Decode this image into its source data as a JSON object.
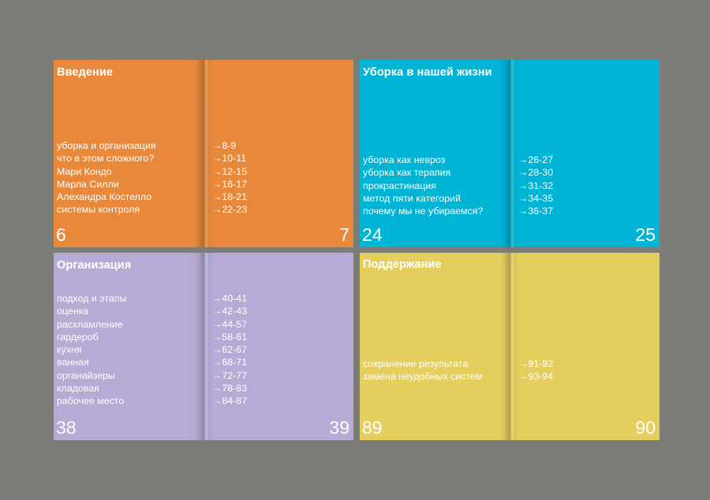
{
  "spreads": [
    {
      "title": "Введение",
      "color": "#e8883b",
      "items": [
        "уборка и организация",
        "что в этом сложного?",
        "Мари Кондо",
        "Марла Силли",
        "Алехандра Костелло",
        "системы контроля"
      ],
      "pages": [
        "→8-9",
        "→10-11",
        "→12-15",
        "→16-17",
        "→18-21",
        "→22-23"
      ],
      "left_page": "6",
      "right_page": "7"
    },
    {
      "title": "Уборка в нашей жизни",
      "color": "#00b4d6",
      "items": [
        "уборка как невроз",
        "уборка как терапия",
        "прокрастинация",
        "метод пяти категорий",
        "почему мы не убираемся?"
      ],
      "pages": [
        "→26-27",
        "→28-30",
        "→31-32",
        "→34-35",
        "→36-37"
      ],
      "left_page": "24",
      "right_page": "25"
    },
    {
      "title": "Организация",
      "color": "#b5abd5",
      "items": [
        "подход и этапы",
        "оценка",
        "расхламление",
        "гардероб",
        "кухня",
        "ванная",
        "органайзеры",
        "кладовая",
        "рабочее место"
      ],
      "pages": [
        "→40-41",
        "→42-43",
        "→44-57",
        "→58-61",
        "→62-67",
        "→68-71",
        "→72-77",
        "→78-83",
        "→84-87"
      ],
      "left_page": "38",
      "right_page": "39"
    },
    {
      "title": "Поддержание",
      "color": "#e3ce5e",
      "items": [
        "сохранение результата",
        "замена неудобных систем"
      ],
      "pages": [
        "→91-92",
        "→93-94"
      ],
      "left_page": "89",
      "right_page": "90"
    }
  ]
}
